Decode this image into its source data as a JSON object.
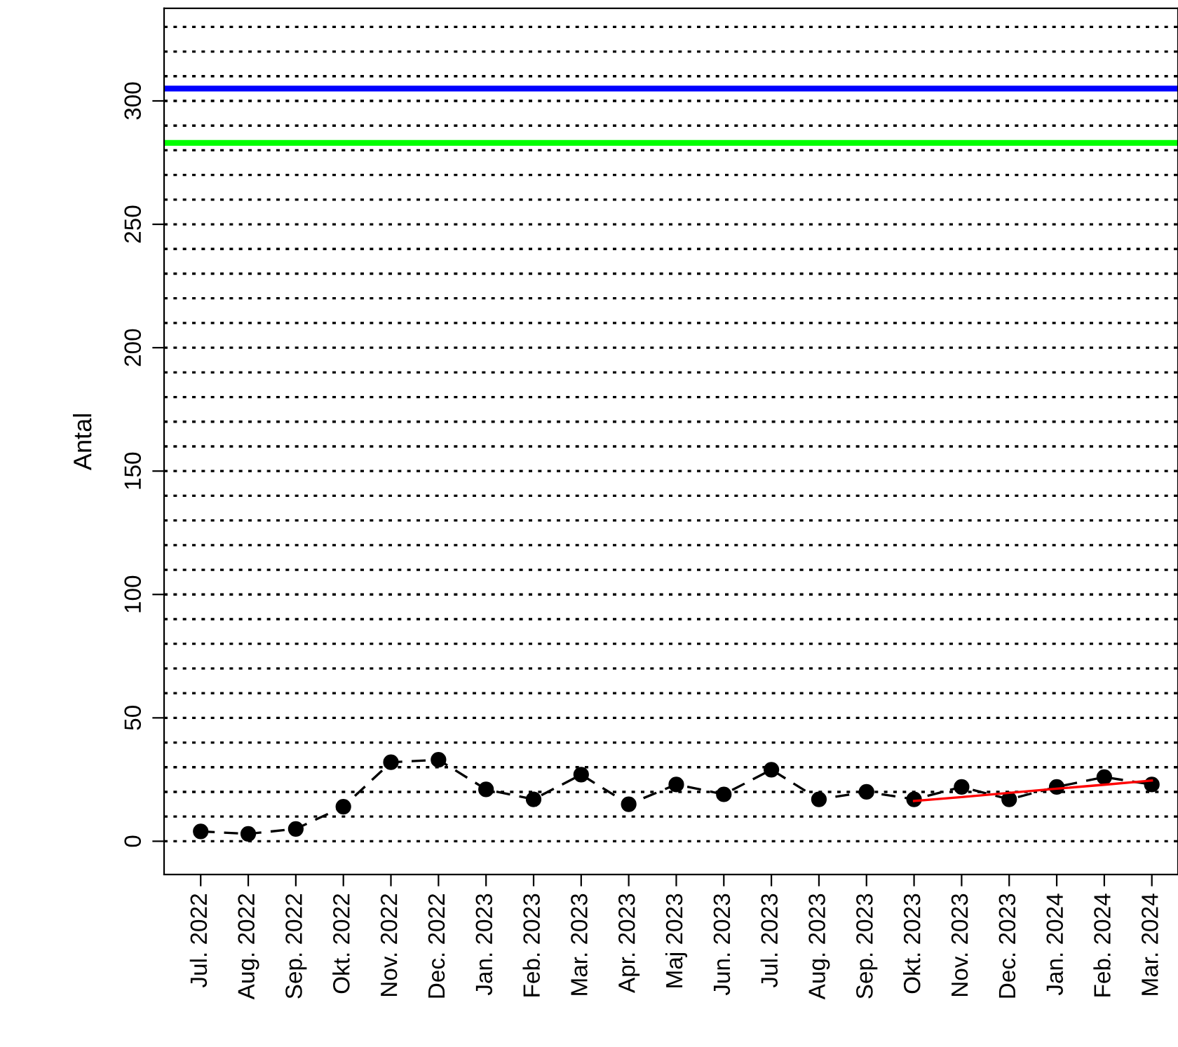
{
  "chart_data": {
    "type": "line",
    "ylabel": "Antal",
    "categories": [
      "Jul. 2022",
      "Aug. 2022",
      "Sep. 2022",
      "Okt. 2022",
      "Nov. 2022",
      "Dec. 2022",
      "Jan. 2023",
      "Feb. 2023",
      "Mar. 2023",
      "Apr. 2023",
      "Maj 2023",
      "Jun. 2023",
      "Jul. 2023",
      "Aug. 2023",
      "Sep. 2023",
      "Okt. 2023",
      "Nov. 2023",
      "Dec. 2023",
      "Jan. 2024",
      "Feb. 2024",
      "Mar. 2024"
    ],
    "series": [
      {
        "color": "#000000",
        "marker": "circle",
        "line_style": "dashed",
        "values": [
          4,
          3,
          5,
          14,
          32,
          33,
          21,
          17,
          27,
          15,
          23,
          19,
          29,
          17,
          20,
          17,
          22,
          17,
          22,
          26,
          23
        ]
      },
      {
        "color": "#ff0000",
        "marker": "none",
        "line_style": "solid",
        "values": [
          null,
          null,
          null,
          null,
          null,
          null,
          null,
          null,
          null,
          null,
          null,
          null,
          null,
          null,
          null,
          16.3,
          17.9,
          19.6,
          21.3,
          22.9,
          24.6
        ]
      }
    ],
    "ylim": [
      -13.5,
      337.5
    ],
    "yticks": [
      0,
      {
        "value": 10,
        "label": null
      },
      {
        "value": 20,
        "label": null
      },
      {
        "value": 30,
        "label": null
      },
      {
        "value": 40,
        "label": null
      },
      50,
      {
        "value": 60,
        "label": null
      },
      {
        "value": 70,
        "label": null
      },
      {
        "value": 80,
        "label": null
      },
      {
        "value": 90,
        "label": null
      },
      100,
      {
        "value": 110,
        "label": null
      },
      {
        "value": 120,
        "label": null
      },
      {
        "value": 130,
        "label": null
      },
      {
        "value": 140,
        "label": null
      },
      150,
      {
        "value": 160,
        "label": null
      },
      {
        "value": 170,
        "label": null
      },
      {
        "value": 180,
        "label": null
      },
      {
        "value": 190,
        "label": null
      },
      200,
      {
        "value": 210,
        "label": null
      },
      {
        "value": 220,
        "label": null
      },
      {
        "value": 230,
        "label": null
      },
      {
        "value": 240,
        "label": null
      },
      250,
      {
        "value": 260,
        "label": null
      },
      {
        "value": 270,
        "label": null
      },
      {
        "value": 280,
        "label": null
      },
      {
        "value": 290,
        "label": null
      },
      300,
      {
        "value": 310,
        "label": null
      },
      {
        "value": 320,
        "label": null
      },
      {
        "value": 330,
        "label": null
      }
    ],
    "grid": "y",
    "ref_lines": [
      {
        "axis": "y",
        "value": 305,
        "color": "#0000ff"
      },
      {
        "axis": "y",
        "value": 283,
        "color": "#00ff00"
      }
    ]
  }
}
